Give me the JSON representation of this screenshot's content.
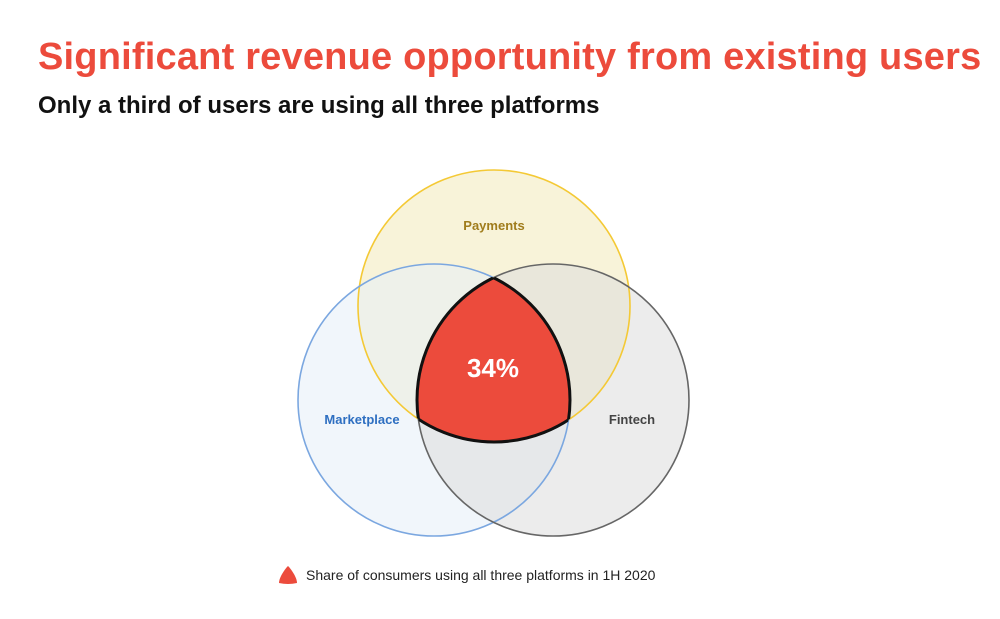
{
  "header": {
    "title": "Significant revenue opportunity from existing users",
    "subtitle": "Only a third of users are using all three platforms"
  },
  "venn": {
    "sets": [
      {
        "key": "payments",
        "label": "Payments",
        "fill": "#f6efcc",
        "stroke": "#f4c935",
        "label_color": "#a07c1c"
      },
      {
        "key": "marketplace",
        "label": "Marketplace",
        "fill": "#e6eef8",
        "stroke": "#7ba7e0",
        "label_color": "#2e6fc1"
      },
      {
        "key": "fintech",
        "label": "Fintech",
        "fill": "#dcdcdc",
        "stroke": "#666666",
        "label_color": "#444444"
      }
    ],
    "intersection": {
      "value": "34%",
      "fill": "#ec4b3c",
      "text_color": "#ffffff"
    }
  },
  "legend": {
    "text": "Share of consumers using all three platforms in 1H 2020",
    "color": "#ec4b3c"
  }
}
